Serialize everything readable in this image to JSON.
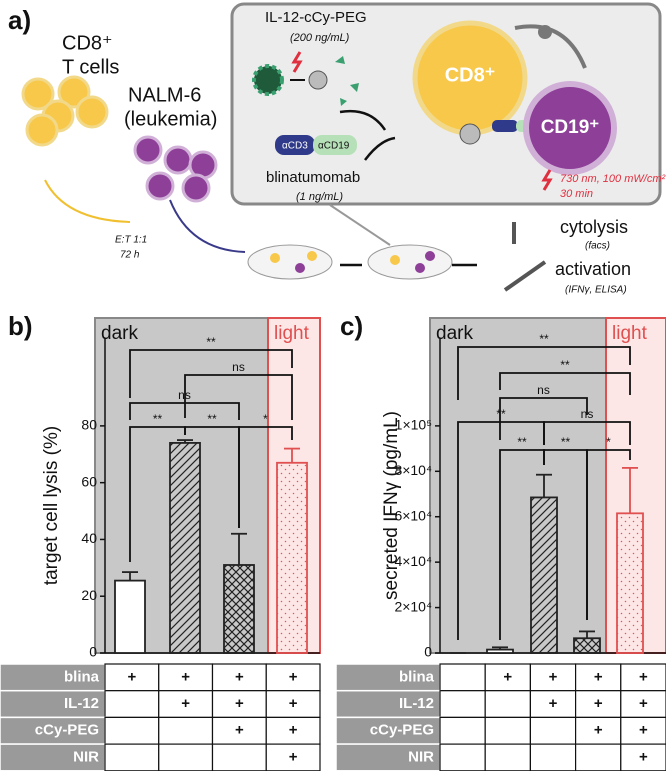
{
  "diagram": {
    "label": "a)",
    "cd8_title": "CD8⁺",
    "cd8_sub": "T cells",
    "nalm_title": "NALM-6",
    "nalm_sub": "(leukemia)",
    "drug": "IL-12-cCy-PEG",
    "drug_dose": "(200 ng/mL)",
    "cd8_cell": "CD8⁺",
    "cd19_cell": "CD19⁺",
    "acd3": "αCD3",
    "acd19": "αCD19",
    "blina": "blinatumomab",
    "blina_dose": "(1 ng/mL)",
    "light": "730 nm, 100 mW/cm²",
    "light_time": "30 min",
    "ratio": "E:T 1:1",
    "time": "72 h",
    "readout1": "cytolysis",
    "readout1_sub": "(facs)",
    "readout2": "activation",
    "readout2_sub": "(IFNγ, ELISA)"
  },
  "chart_data": [
    {
      "type": "bar",
      "panel_label": "b)",
      "ylabel": "target cell lysis (%)",
      "values": [
        25.5,
        74,
        31,
        67
      ],
      "errors": [
        3,
        1,
        11,
        5
      ],
      "colors": [
        "#222222",
        "#222222",
        "#222222",
        "#e05050"
      ],
      "patterns": [
        "none",
        "hatch",
        "crosshatch",
        "dots"
      ],
      "ylim": [
        0,
        118
      ],
      "yticks": [
        0,
        20,
        40,
        60,
        80
      ],
      "regions": [
        {
          "label": "dark",
          "color": "#c8c8c8"
        },
        {
          "label": "light",
          "color": "#fde6e6"
        }
      ],
      "brackets": [
        "**",
        "ns",
        "ns",
        "**",
        "**",
        "*"
      ]
    },
    {
      "type": "bar",
      "panel_label": "c)",
      "ylabel": "secreted IFNγ (pg/mL)",
      "values": [
        0,
        1500,
        68500,
        6500,
        61500
      ],
      "errors": [
        0,
        1000,
        10000,
        3000,
        20000
      ],
      "colors": [
        "#222222",
        "#222222",
        "#222222",
        "#222222",
        "#e05050"
      ],
      "patterns": [
        "none",
        "none",
        "hatch",
        "crosshatch",
        "dots"
      ],
      "ylim": [
        0,
        147500
      ],
      "yticks": [
        0,
        {
          "value": 20000,
          "label": "2×10⁴"
        },
        {
          "value": 40000,
          "label": "4×10⁴"
        },
        {
          "value": 60000,
          "label": "6×10⁴"
        },
        {
          "value": 80000,
          "label": "8×10⁴"
        },
        {
          "value": 100000,
          "label": "1×10⁵"
        }
      ],
      "regions": [
        {
          "label": "dark",
          "color": "#c8c8c8"
        },
        {
          "label": "light",
          "color": "#fde6e6"
        }
      ],
      "brackets": [
        "**",
        "**",
        "ns",
        "**",
        "ns",
        "**",
        "**",
        "*"
      ]
    }
  ],
  "tables": [
    {
      "rows": [
        {
          "label": "blina",
          "cells": [
            "+",
            "+",
            "+",
            "+"
          ]
        },
        {
          "label": "IL-12",
          "cells": [
            null,
            "+",
            "+",
            "+"
          ]
        },
        {
          "label": "cCy-PEG",
          "cells": [
            null,
            null,
            "+",
            "+"
          ]
        },
        {
          "label": "NIR",
          "cells": [
            null,
            null,
            null,
            "+"
          ]
        }
      ]
    },
    {
      "rows": [
        {
          "label": "blina",
          "cells": [
            null,
            "+",
            "+",
            "+",
            "+"
          ]
        },
        {
          "label": "IL-12",
          "cells": [
            null,
            null,
            "+",
            "+",
            "+"
          ]
        },
        {
          "label": "cCy-PEG",
          "cells": [
            null,
            null,
            null,
            "+",
            "+"
          ]
        },
        {
          "label": "NIR",
          "cells": [
            null,
            null,
            null,
            null,
            "+"
          ]
        }
      ]
    }
  ]
}
